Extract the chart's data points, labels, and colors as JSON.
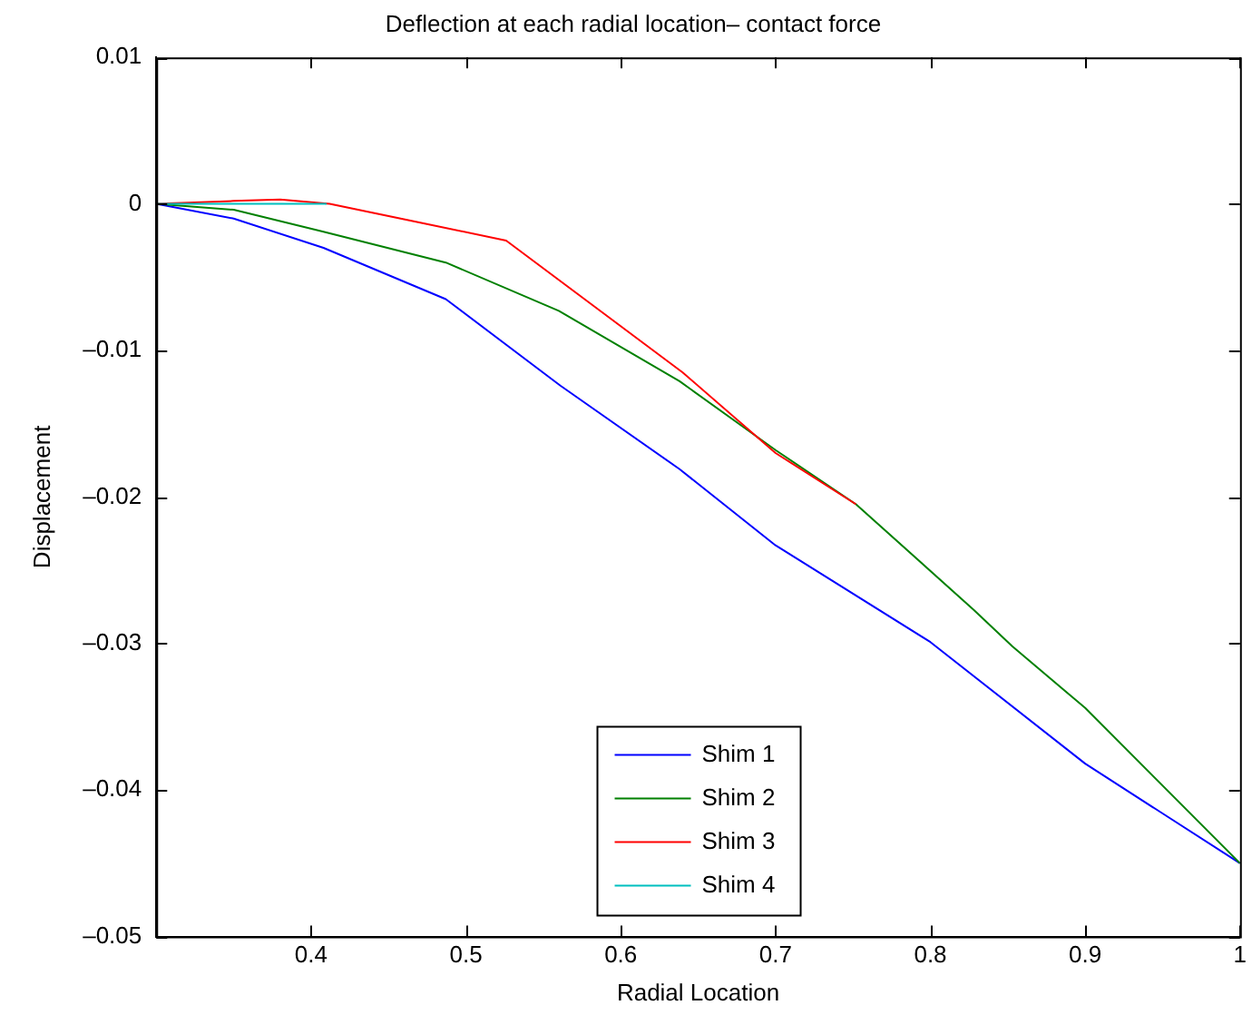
{
  "chart_data": {
    "type": "line",
    "title": "Deflection at each radial location– contact force",
    "xlabel": "Radial Location",
    "ylabel": "Displacement",
    "xlim": [
      0.3,
      1
    ],
    "xticks": [
      0.4,
      0.5,
      0.6,
      0.7,
      0.8,
      0.9,
      1
    ],
    "ylim": [
      -0.05,
      0.01
    ],
    "yticks": [
      0.01,
      0,
      {
        "value": -0.01,
        "label": "–0.01"
      },
      {
        "value": -0.02,
        "label": "–0.02"
      },
      {
        "value": -0.03,
        "label": "–0.03"
      },
      {
        "value": -0.04,
        "label": "–0.04"
      },
      {
        "value": -0.05,
        "label": "–0.05"
      }
    ],
    "grid": false,
    "legend": "bottom",
    "marker": "none",
    "line_style": "solid",
    "series": [
      {
        "name": "Shim 1",
        "color": "#0000ff",
        "x": [
          0.3,
          0.35,
          0.408,
          0.487,
          0.561,
          0.638,
          0.7,
          0.8,
          0.9,
          0.95,
          1
        ],
        "values": [
          0,
          -0.001,
          -0.003,
          -0.0065,
          -0.0124,
          -0.0181,
          -0.0233,
          -0.0299,
          -0.0382,
          -0.0416,
          -0.045
        ]
      },
      {
        "name": "Shim 2",
        "color": "#008000",
        "x": [
          0.3,
          0.35,
          0.408,
          0.487,
          0.56,
          0.638,
          0.7,
          0.752,
          0.828,
          0.853,
          0.9,
          1
        ],
        "values": [
          0,
          -0.0004,
          -0.0019,
          -0.004,
          -0.0073,
          -0.0121,
          -0.0168,
          -0.0205,
          -0.0277,
          -0.0302,
          -0.0344,
          -0.045
        ]
      },
      {
        "name": "Shim 3",
        "color": "#ff0000",
        "x": [
          0.3,
          0.35,
          0.38,
          0.412,
          0.467,
          0.526,
          0.64,
          0.7,
          0.752
        ],
        "values": [
          0,
          0.0002,
          0.0003,
          0,
          -0.0012,
          -0.0025,
          -0.0115,
          -0.017,
          -0.0205
        ]
      },
      {
        "name": "Shim 4",
        "color": "#00bfbf",
        "x": [
          0.3,
          0.35,
          0.41
        ],
        "values": [
          0,
          0,
          0
        ]
      }
    ]
  }
}
